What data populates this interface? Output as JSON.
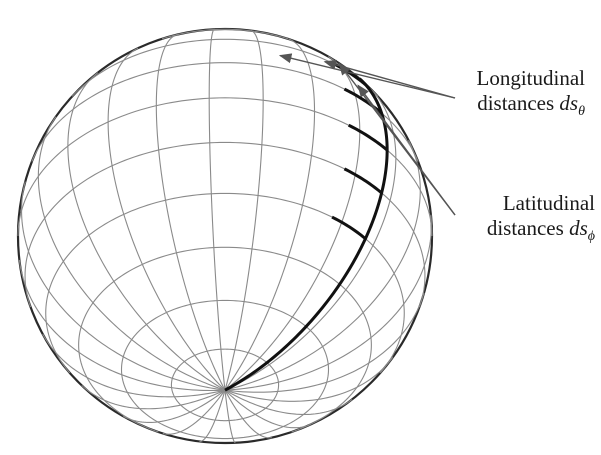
{
  "labels": {
    "longitudinal": {
      "line1": "Longitudinal",
      "line2_text": "distances ",
      "line2_symbol": "ds",
      "line2_subscript": "θ"
    },
    "latitudinal": {
      "line1": "Latitudinal",
      "line2_text": "distances ",
      "line2_symbol": "ds",
      "line2_subscript": "ϕ"
    }
  },
  "colors": {
    "grid": "#8a8a8a",
    "outline": "#2a2a2a",
    "highlight": "#111111",
    "arrow": "#555555"
  }
}
